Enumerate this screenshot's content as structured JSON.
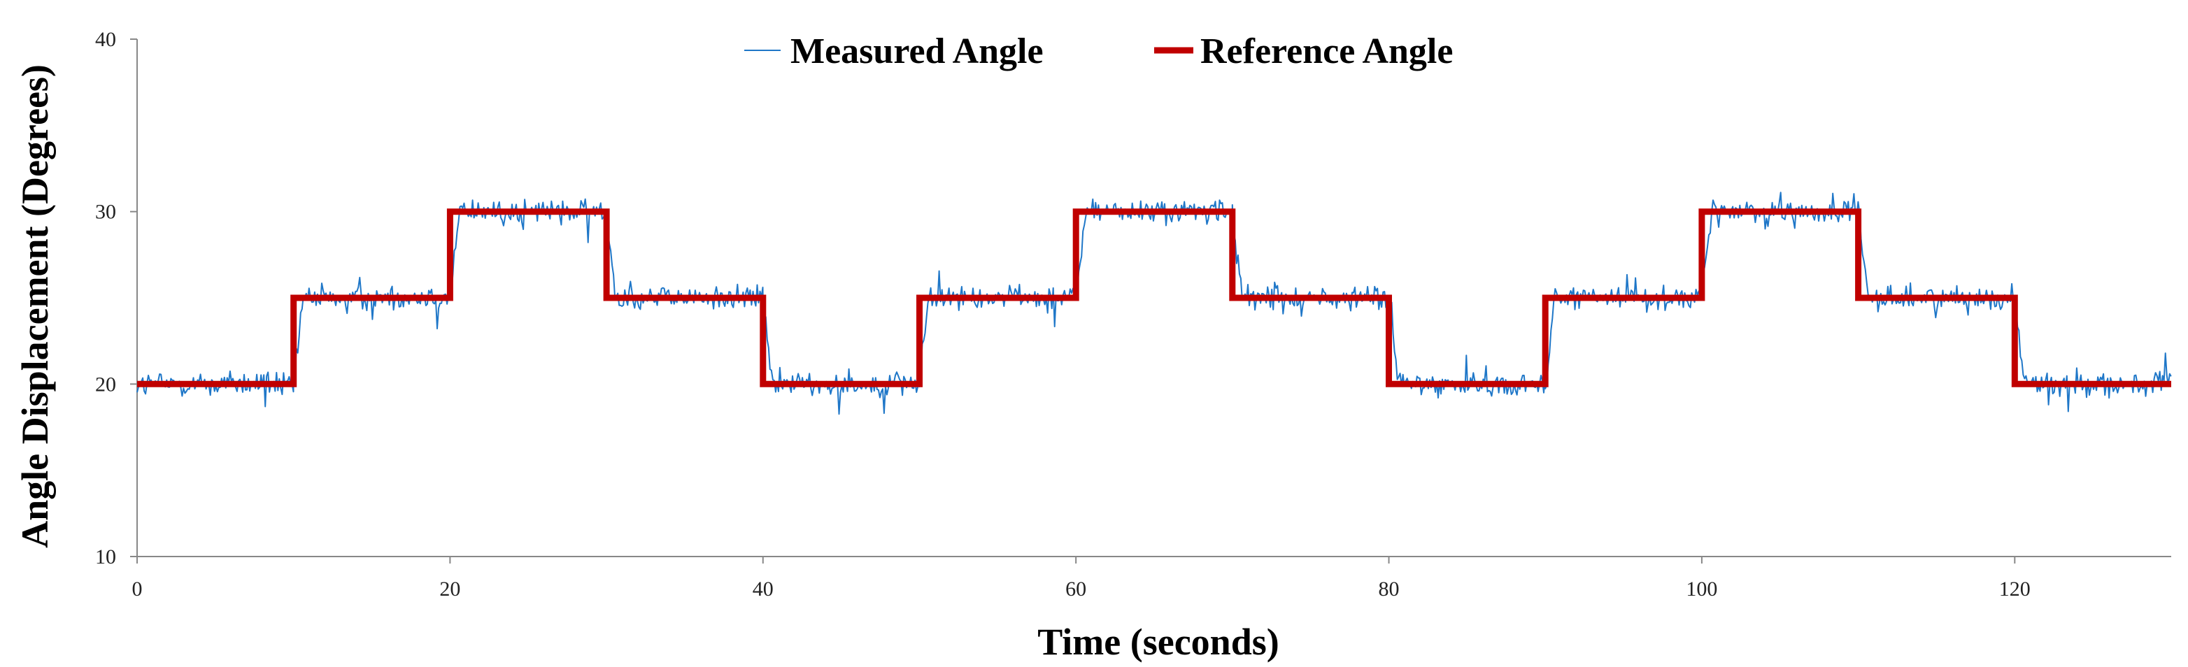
{
  "chart_data": {
    "type": "line",
    "title": "",
    "xlabel": "Time (seconds)",
    "ylabel": "Angle Displacement (Degrees)",
    "xlim": [
      0,
      130
    ],
    "ylim": [
      10,
      40
    ],
    "x_ticks": [
      0,
      20,
      40,
      60,
      80,
      100,
      120
    ],
    "y_ticks": [
      10,
      20,
      30,
      40
    ],
    "grid": false,
    "legend_position": "top-center",
    "series": [
      {
        "name": "Measured Angle",
        "color": "#1f77c8",
        "style": "noisy line tracking the reference with about ±1 degree fluctuation and short rise time after each step",
        "segments": [
          {
            "x_start": 0,
            "x_end": 10,
            "level": 20
          },
          {
            "x_start": 10,
            "x_end": 20,
            "level": 25
          },
          {
            "x_start": 20,
            "x_end": 30,
            "level": 30
          },
          {
            "x_start": 30,
            "x_end": 40,
            "level": 25
          },
          {
            "x_start": 40,
            "x_end": 50,
            "level": 20
          },
          {
            "x_start": 50,
            "x_end": 60,
            "level": 25
          },
          {
            "x_start": 60,
            "x_end": 70,
            "level": 30
          },
          {
            "x_start": 70,
            "x_end": 80,
            "level": 25
          },
          {
            "x_start": 80,
            "x_end": 90,
            "level": 20
          },
          {
            "x_start": 90,
            "x_end": 100,
            "level": 25
          },
          {
            "x_start": 100,
            "x_end": 110,
            "level": 30
          },
          {
            "x_start": 110,
            "x_end": 120,
            "level": 25
          },
          {
            "x_start": 120,
            "x_end": 130,
            "level": 20
          }
        ],
        "noise_amplitude": 0.8
      },
      {
        "name": "Reference Angle",
        "color": "#c00000",
        "x": [
          0,
          10,
          10,
          20,
          20,
          30,
          30,
          40,
          40,
          50,
          50,
          60,
          60,
          70,
          70,
          80,
          80,
          90,
          90,
          100,
          100,
          110,
          110,
          120,
          120,
          130
        ],
        "y": [
          20,
          20,
          25,
          25,
          30,
          30,
          25,
          25,
          20,
          20,
          25,
          25,
          30,
          30,
          25,
          25,
          20,
          20,
          25,
          25,
          30,
          30,
          25,
          25,
          20,
          20
        ]
      }
    ]
  }
}
